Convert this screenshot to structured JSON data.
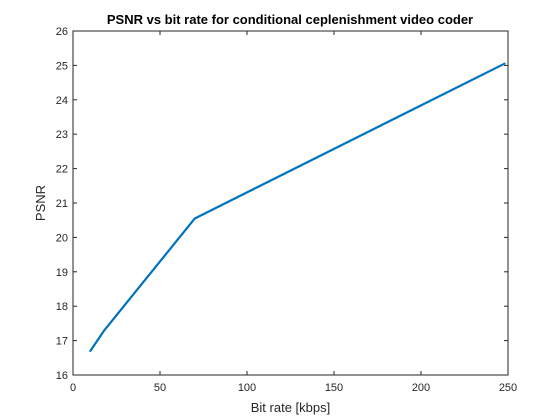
{
  "chart_data": {
    "type": "line",
    "title": "PSNR vs bit rate for conditional ceplenishment video coder",
    "xlabel": "Bit rate [kbps]",
    "ylabel": "PSNR",
    "xlim": [
      0,
      250
    ],
    "ylim": [
      16,
      26
    ],
    "xticks": [
      0,
      50,
      100,
      150,
      200,
      250
    ],
    "yticks": [
      16,
      17,
      18,
      19,
      20,
      21,
      22,
      23,
      24,
      25,
      26
    ],
    "xtick_labels": [
      "0",
      "50",
      "100",
      "150",
      "200",
      "250"
    ],
    "ytick_labels": [
      "16",
      "17",
      "18",
      "19",
      "20",
      "21",
      "22",
      "23",
      "24",
      "25",
      "26"
    ],
    "grid": false,
    "series": [
      {
        "color": "#0072BD",
        "x": [
          10,
          18,
          70,
          248
        ],
        "y": [
          16.7,
          17.3,
          20.55,
          25.05
        ]
      }
    ]
  }
}
